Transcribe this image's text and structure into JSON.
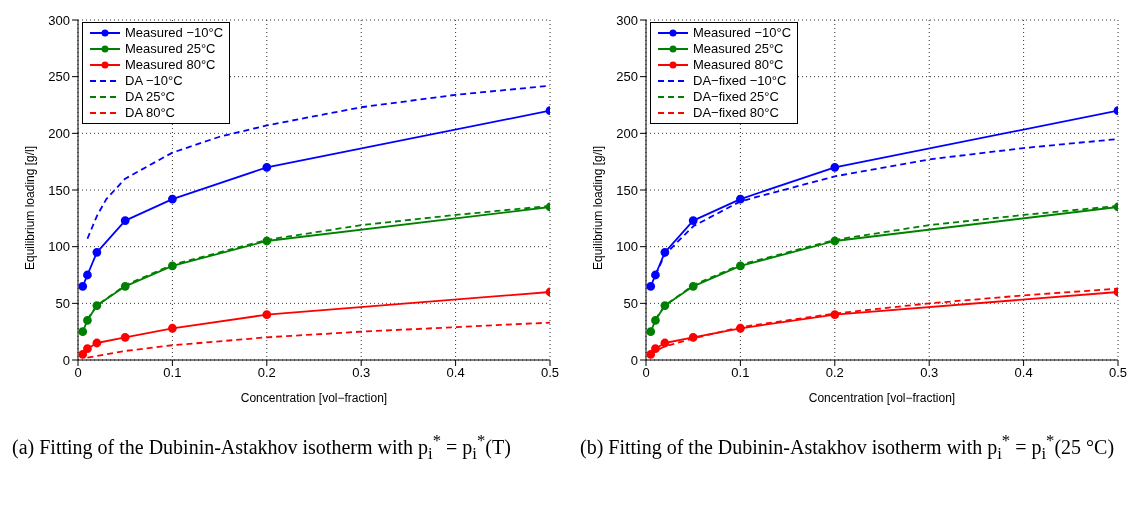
{
  "chart_data": [
    {
      "type": "line",
      "xlabel": "Concentration [vol−fraction]",
      "ylabel": "Equilibrium loading [g/l]",
      "xlim": [
        0,
        0.5
      ],
      "ylim": [
        0,
        300
      ],
      "xticks": [
        0,
        0.1,
        0.2,
        0.3,
        0.4,
        0.5
      ],
      "yticks": [
        0,
        50,
        100,
        150,
        200,
        250,
        300
      ],
      "grid": true,
      "legend": "top left",
      "annotations": [
        "(a) Fitting of the Dubinin-Astakhov isotherm with p$_{i}$$^{*}$ = p$_{i}$$^{*}$(T)"
      ],
      "series": [
        {
          "name": "Measured −10°C",
          "color": "#0000ff",
          "marker": "circle",
          "line_style": "solid",
          "x": [
            0.005,
            0.01,
            0.02,
            0.05,
            0.1,
            0.2,
            0.5
          ],
          "values": [
            65,
            75,
            95,
            123,
            142,
            170,
            220
          ]
        },
        {
          "name": "Measured 25°C",
          "color": "#008000",
          "marker": "circle",
          "line_style": "solid",
          "x": [
            0.005,
            0.01,
            0.02,
            0.05,
            0.1,
            0.2,
            0.5
          ],
          "values": [
            25,
            35,
            48,
            65,
            83,
            105,
            135
          ]
        },
        {
          "name": "Measured 80°C",
          "color": "#ff0000",
          "marker": "circle",
          "line_style": "solid",
          "x": [
            0.005,
            0.01,
            0.02,
            0.05,
            0.1,
            0.2,
            0.5
          ],
          "values": [
            5,
            10,
            15,
            20,
            28,
            40,
            60
          ]
        },
        {
          "name": "DA −10°C",
          "color": "#0000ff",
          "marker": "none",
          "line_style": "dashed",
          "x": [
            0.01,
            0.02,
            0.03,
            0.05,
            0.1,
            0.15,
            0.2,
            0.3,
            0.4,
            0.5
          ],
          "values": [
            107,
            127,
            142,
            160,
            183,
            197,
            207,
            223,
            234,
            242
          ]
        },
        {
          "name": "DA 25°C",
          "color": "#008000",
          "marker": "none",
          "line_style": "dashed",
          "x": [
            0.01,
            0.02,
            0.05,
            0.1,
            0.2,
            0.3,
            0.4,
            0.5
          ],
          "values": [
            36,
            48,
            66,
            84,
            106,
            119,
            128,
            136
          ]
        },
        {
          "name": "DA 80°C",
          "color": "#ff0000",
          "marker": "none",
          "line_style": "dashed",
          "x": [
            0.01,
            0.05,
            0.1,
            0.2,
            0.3,
            0.4,
            0.5
          ],
          "values": [
            2,
            8,
            13,
            20,
            25,
            29,
            33
          ]
        }
      ]
    },
    {
      "type": "line",
      "xlabel": "Concentration [vol−fraction]",
      "ylabel": "Equilibrium loading [g/l]",
      "xlim": [
        0,
        0.5
      ],
      "ylim": [
        0,
        300
      ],
      "xticks": [
        0,
        0.1,
        0.2,
        0.3,
        0.4,
        0.5
      ],
      "yticks": [
        0,
        50,
        100,
        150,
        200,
        250,
        300
      ],
      "grid": true,
      "legend": "top left",
      "annotations": [
        "(b) Fitting of the Dubinin-Astakhov isotherm with p$_{i}$$^{*}$ = p$_{i}$$^{*}$(25 °C)"
      ],
      "series": [
        {
          "name": "Measured −10°C",
          "color": "#0000ff",
          "marker": "circle",
          "line_style": "solid",
          "x": [
            0.005,
            0.01,
            0.02,
            0.05,
            0.1,
            0.2,
            0.5
          ],
          "values": [
            65,
            75,
            95,
            123,
            142,
            170,
            220
          ]
        },
        {
          "name": "Measured 25°C",
          "color": "#008000",
          "marker": "circle",
          "line_style": "solid",
          "x": [
            0.005,
            0.01,
            0.02,
            0.05,
            0.1,
            0.2,
            0.5
          ],
          "values": [
            25,
            35,
            48,
            65,
            83,
            105,
            135
          ]
        },
        {
          "name": "Measured 80°C",
          "color": "#ff0000",
          "marker": "circle",
          "line_style": "solid",
          "x": [
            0.005,
            0.01,
            0.02,
            0.05,
            0.1,
            0.2,
            0.5
          ],
          "values": [
            5,
            10,
            15,
            20,
            28,
            40,
            60
          ]
        },
        {
          "name": "DA−fixed −10°C",
          "color": "#0000ff",
          "marker": "none",
          "line_style": "dashed",
          "x": [
            0.01,
            0.02,
            0.05,
            0.1,
            0.2,
            0.3,
            0.4,
            0.5
          ],
          "values": [
            75,
            93,
            118,
            140,
            162,
            177,
            187,
            195
          ]
        },
        {
          "name": "DA−fixed 25°C",
          "color": "#008000",
          "marker": "none",
          "line_style": "dashed",
          "x": [
            0.01,
            0.02,
            0.05,
            0.1,
            0.2,
            0.3,
            0.4,
            0.5
          ],
          "values": [
            36,
            48,
            66,
            84,
            106,
            119,
            128,
            136
          ]
        },
        {
          "name": "DA−fixed 80°C",
          "color": "#ff0000",
          "marker": "none",
          "line_style": "dashed",
          "x": [
            0.005,
            0.01,
            0.02,
            0.05,
            0.1,
            0.2,
            0.3,
            0.4,
            0.5
          ],
          "values": [
            5,
            8,
            12,
            19,
            29,
            41,
            50,
            57,
            63
          ]
        }
      ]
    }
  ]
}
